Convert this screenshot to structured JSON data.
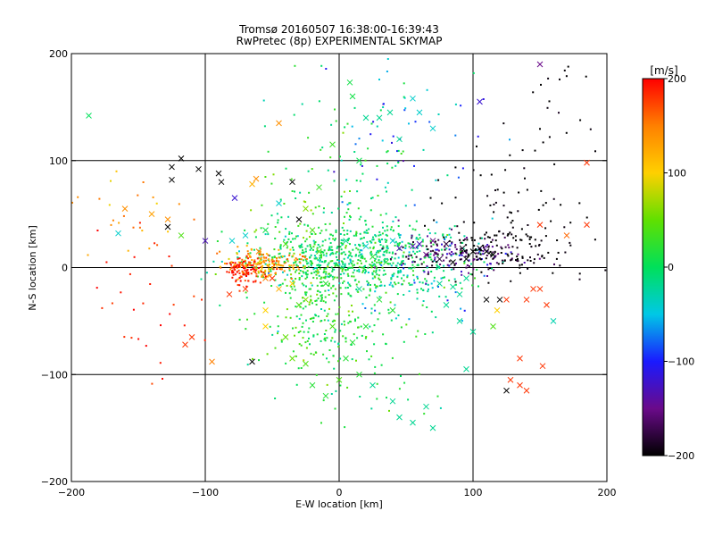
{
  "chart_data": {
    "type": "scatter",
    "title": "Tromsø 20160507 16:38:00-16:39:43",
    "subtitle": "RwPretec (8p) EXPERIMENTAL SKYMAP",
    "xlabel": "E-W location [km]",
    "ylabel": "N-S location [km]",
    "xlim": [
      -200,
      200
    ],
    "ylim": [
      -200,
      200
    ],
    "xticks": [
      -200,
      -100,
      0,
      100,
      200
    ],
    "yticks": [
      -200,
      -100,
      0,
      100,
      200
    ],
    "grid": true,
    "colorbar": {
      "label": "[m/s]",
      "range": [
        -200,
        200
      ],
      "ticks": [
        200,
        100,
        0,
        -100,
        -200
      ],
      "colors": [
        "#000000",
        "#6a0a8a",
        "#1a1aff",
        "#00c8e6",
        "#00e05a",
        "#60e000",
        "#ffd000",
        "#ff8000",
        "#ff0000"
      ]
    },
    "series": [
      {
        "marker": "x",
        "points": [
          [
            -187,
            142,
            0
          ],
          [
            -165,
            32,
            -40
          ],
          [
            -160,
            55,
            140
          ],
          [
            -140,
            50,
            130
          ],
          [
            -128,
            45,
            140
          ],
          [
            -128,
            38,
            -200
          ],
          [
            -125,
            82,
            -200
          ],
          [
            -125,
            94,
            -200
          ],
          [
            -118,
            102,
            -200
          ],
          [
            -105,
            92,
            -200
          ],
          [
            -90,
            88,
            -200
          ],
          [
            -88,
            80,
            -200
          ],
          [
            -78,
            65,
            -120
          ],
          [
            -65,
            78,
            120
          ],
          [
            -62,
            83,
            140
          ],
          [
            -45,
            135,
            140
          ],
          [
            -35,
            80,
            -200
          ],
          [
            -25,
            55,
            60
          ],
          [
            -15,
            75,
            30
          ],
          [
            -5,
            115,
            30
          ],
          [
            15,
            100,
            5
          ],
          [
            20,
            140,
            -20
          ],
          [
            30,
            140,
            -20
          ],
          [
            38,
            145,
            -20
          ],
          [
            45,
            120,
            -20
          ],
          [
            55,
            158,
            -40
          ],
          [
            10,
            160,
            10
          ],
          [
            8,
            173,
            10
          ],
          [
            60,
            145,
            -40
          ],
          [
            70,
            130,
            -40
          ],
          [
            105,
            155,
            -120
          ],
          [
            150,
            190,
            -150
          ],
          [
            -30,
            45,
            -200
          ],
          [
            -45,
            60,
            -40
          ],
          [
            -55,
            35,
            10
          ],
          [
            -70,
            30,
            -40
          ],
          [
            -80,
            25,
            -40
          ],
          [
            -100,
            25,
            -130
          ],
          [
            -118,
            30,
            40
          ],
          [
            -110,
            -65,
            180
          ],
          [
            -115,
            -72,
            180
          ],
          [
            -95,
            -88,
            150
          ],
          [
            -65,
            -88,
            -200
          ],
          [
            -55,
            -40,
            100
          ],
          [
            -55,
            -55,
            100
          ],
          [
            -40,
            -65,
            50
          ],
          [
            -35,
            -85,
            50
          ],
          [
            -25,
            -90,
            40
          ],
          [
            -10,
            -120,
            20
          ],
          [
            5,
            -85,
            20
          ],
          [
            15,
            -100,
            20
          ],
          [
            25,
            -110,
            -20
          ],
          [
            40,
            -125,
            -20
          ],
          [
            45,
            -140,
            -20
          ],
          [
            55,
            -145,
            -20
          ],
          [
            65,
            -130,
            -20
          ],
          [
            70,
            -150,
            -20
          ],
          [
            -20,
            -110,
            20
          ],
          [
            0,
            -105,
            40
          ],
          [
            90,
            -50,
            -20
          ],
          [
            100,
            -60,
            -20
          ],
          [
            115,
            -55,
            40
          ],
          [
            118,
            -40,
            100
          ],
          [
            125,
            -30,
            180
          ],
          [
            140,
            -30,
            180
          ],
          [
            145,
            -20,
            180
          ],
          [
            150,
            -20,
            180
          ],
          [
            155,
            -35,
            180
          ],
          [
            160,
            -50,
            -30
          ],
          [
            135,
            -85,
            180
          ],
          [
            152,
            -92,
            180
          ],
          [
            128,
            -105,
            180
          ],
          [
            135,
            -110,
            180
          ],
          [
            140,
            -115,
            180
          ],
          [
            125,
            -115,
            -200
          ],
          [
            150,
            40,
            180
          ],
          [
            170,
            30,
            160
          ],
          [
            185,
            40,
            180
          ],
          [
            185,
            98,
            180
          ],
          [
            55,
            20,
            -130
          ],
          [
            60,
            22,
            -130
          ],
          [
            70,
            25,
            -150
          ],
          [
            80,
            22,
            -180
          ],
          [
            92,
            18,
            -190
          ],
          [
            100,
            15,
            -200
          ],
          [
            105,
            18,
            -200
          ],
          [
            110,
            15,
            -200
          ],
          [
            115,
            12,
            -200
          ],
          [
            95,
            8,
            -200
          ],
          [
            85,
            5,
            -200
          ],
          [
            75,
            8,
            -180
          ],
          [
            65,
            12,
            -150
          ],
          [
            45,
            18,
            -130
          ],
          [
            40,
            25,
            -40
          ],
          [
            20,
            20,
            -40
          ],
          [
            35,
            5,
            20
          ],
          [
            25,
            10,
            20
          ],
          [
            -20,
            35,
            40
          ],
          [
            -40,
            22,
            40
          ],
          [
            -15,
            15,
            40
          ],
          [
            5,
            25,
            -20
          ],
          [
            15,
            -20,
            -20
          ],
          [
            -10,
            -15,
            20
          ],
          [
            -30,
            -35,
            40
          ],
          [
            -45,
            -20,
            120
          ],
          [
            -55,
            -10,
            150
          ],
          [
            -60,
            15,
            150
          ],
          [
            -70,
            -20,
            180
          ],
          [
            -82,
            -25,
            180
          ],
          [
            75,
            -15,
            -20
          ],
          [
            85,
            -18,
            -20
          ],
          [
            90,
            -25,
            -20
          ],
          [
            95,
            -10,
            -20
          ],
          [
            80,
            -35,
            -20
          ],
          [
            120,
            -30,
            -200
          ],
          [
            110,
            -30,
            -200
          ],
          [
            95,
            -95,
            -20
          ],
          [
            -50,
            -10,
            180
          ],
          [
            -35,
            -15,
            100
          ],
          [
            -25,
            -30,
            60
          ],
          [
            40,
            -40,
            20
          ],
          [
            30,
            -30,
            20
          ],
          [
            20,
            -55,
            20
          ],
          [
            10,
            -70,
            20
          ],
          [
            -5,
            -55,
            40
          ]
        ]
      },
      {
        "marker": "dot",
        "clusters": [
          {
            "n": 520,
            "cx": 10,
            "cy": 5,
            "sx": 40,
            "sy": 14,
            "v": 0,
            "sv": 25
          },
          {
            "n": 240,
            "cx": -20,
            "cy": -5,
            "sx": 22,
            "sy": 40,
            "v": 20,
            "sv": 25
          },
          {
            "n": 140,
            "cx": -10,
            "cy": -50,
            "sx": 25,
            "sy": 30,
            "v": 20,
            "sv": 20
          },
          {
            "n": 180,
            "cx": -55,
            "cy": 2,
            "sx": 14,
            "sy": 7,
            "v": 130,
            "sv": 25
          },
          {
            "n": 90,
            "cx": -72,
            "cy": -2,
            "sx": 7,
            "sy": 6,
            "v": 190,
            "sv": 10
          },
          {
            "n": 130,
            "cx": 40,
            "cy": 25,
            "sx": 30,
            "sy": 12,
            "v": -10,
            "sv": 20
          },
          {
            "n": 170,
            "cx": 88,
            "cy": 12,
            "sx": 22,
            "sy": 9,
            "v": -160,
            "sv": 30
          },
          {
            "n": 100,
            "cx": 120,
            "cy": 18,
            "sx": 25,
            "sy": 14,
            "v": -200,
            "sv": 5
          },
          {
            "n": 70,
            "cx": 140,
            "cy": 55,
            "sx": 35,
            "sy": 35,
            "v": -200,
            "sv": 5
          },
          {
            "n": 55,
            "cx": 50,
            "cy": 130,
            "sx": 30,
            "sy": 40,
            "v": -60,
            "sv": 40
          },
          {
            "n": 70,
            "cx": 0,
            "cy": 90,
            "sx": 30,
            "sy": 40,
            "v": 0,
            "sv": 25
          },
          {
            "n": 45,
            "cx": 25,
            "cy": -90,
            "sx": 22,
            "sy": 30,
            "v": 10,
            "sv": 20
          },
          {
            "n": 65,
            "cx": 60,
            "cy": -20,
            "sx": 28,
            "sy": 15,
            "v": -30,
            "sv": 30
          },
          {
            "n": 28,
            "cx": -140,
            "cy": -50,
            "sx": 25,
            "sy": 35,
            "v": 190,
            "sv": 10
          },
          {
            "n": 25,
            "cx": -160,
            "cy": 45,
            "sx": 20,
            "sy": 25,
            "v": 130,
            "sv": 30
          },
          {
            "n": 20,
            "cx": 160,
            "cy": 150,
            "sx": 25,
            "sy": 30,
            "v": -200,
            "sv": 5
          }
        ]
      }
    ]
  }
}
